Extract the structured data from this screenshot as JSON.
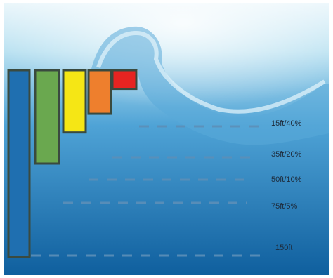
{
  "chart_data": {
    "type": "bar",
    "categories": [
      "150ft",
      "75ft/5%",
      "50ft/10%",
      "35ft/20%",
      "15ft/40%"
    ],
    "series": [
      {
        "values": [
          150,
          75,
          50,
          35,
          15
        ]
      }
    ],
    "colors": [
      "#1f6fb0",
      "#6aa84f",
      "#f5e615",
      "#ee7f2d",
      "#e62421"
    ],
    "ylim": [
      0,
      150
    ],
    "orientation": "downward",
    "labels": [
      "15ft/40%",
      "35ft/20%",
      "50ft/10%",
      "75ft/5%",
      "150ft"
    ],
    "grid": false,
    "legend": "none"
  }
}
